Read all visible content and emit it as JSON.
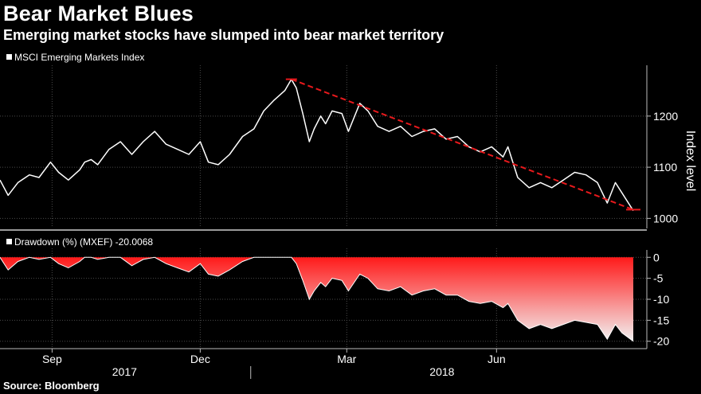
{
  "title": "Bear Market Blues",
  "subtitle": "Emerging market stocks have slumped into bear market territory",
  "source": "Source: Bloomberg",
  "colors": {
    "background": "#000000",
    "index_line": "#ffffff",
    "trend_line": "#e8191c",
    "drawdown_fill_top": "#ff1a1a",
    "drawdown_fill_bottom": "#f2f2f2",
    "grid": "#4a4a4a"
  },
  "chart_data": [
    {
      "type": "line",
      "legend": "MSCI Emerging Markets Index",
      "ylabel": "Index level",
      "ylim": [
        985,
        1290
      ],
      "yticks": [
        1000,
        1100,
        1200
      ],
      "x_range": [
        "2017-07-31",
        "2018-08-24"
      ],
      "series": [
        {
          "x": [
            "2017-07-31",
            "2017-08-05",
            "2017-08-11",
            "2017-08-18",
            "2017-08-24",
            "2017-08-31",
            "2017-09-05",
            "2017-09-11",
            "2017-09-18",
            "2017-09-21",
            "2017-09-25",
            "2017-09-29",
            "2017-10-06",
            "2017-10-13",
            "2017-10-20",
            "2017-10-27",
            "2017-11-03",
            "2017-11-10",
            "2017-11-17",
            "2017-11-24",
            "2017-12-01",
            "2017-12-06",
            "2017-12-12",
            "2017-12-19",
            "2017-12-27",
            "2018-01-03",
            "2018-01-09",
            "2018-01-15",
            "2018-01-22",
            "2018-01-26",
            "2018-01-29",
            "2018-02-02",
            "2018-02-06",
            "2018-02-09",
            "2018-02-13",
            "2018-02-16",
            "2018-02-20",
            "2018-02-26",
            "2018-03-02",
            "2018-03-09",
            "2018-03-14",
            "2018-03-20",
            "2018-03-27",
            "2018-04-03",
            "2018-04-10",
            "2018-04-17",
            "2018-04-24",
            "2018-05-01",
            "2018-05-08",
            "2018-05-15",
            "2018-05-22",
            "2018-05-29",
            "2018-06-05",
            "2018-06-08",
            "2018-06-14",
            "2018-06-21",
            "2018-06-28",
            "2018-07-05",
            "2018-07-12",
            "2018-07-19",
            "2018-07-26",
            "2018-08-02",
            "2018-08-08",
            "2018-08-13",
            "2018-08-17",
            "2018-08-24"
          ],
          "values": [
            1075,
            1045,
            1070,
            1085,
            1080,
            1110,
            1090,
            1075,
            1095,
            1110,
            1115,
            1105,
            1135,
            1150,
            1125,
            1150,
            1170,
            1145,
            1135,
            1125,
            1150,
            1110,
            1105,
            1125,
            1160,
            1175,
            1210,
            1230,
            1250,
            1272,
            1255,
            1205,
            1150,
            1175,
            1200,
            1185,
            1210,
            1205,
            1170,
            1225,
            1210,
            1180,
            1170,
            1180,
            1160,
            1170,
            1175,
            1155,
            1160,
            1140,
            1130,
            1140,
            1120,
            1140,
            1080,
            1060,
            1070,
            1060,
            1075,
            1090,
            1085,
            1070,
            1030,
            1070,
            1050,
            1015
          ]
        }
      ],
      "trend_line": {
        "from": {
          "x": "2018-01-26",
          "y": 1272
        },
        "to": {
          "x": "2018-08-24",
          "y": 1017
        }
      }
    },
    {
      "type": "area",
      "legend": "Drawdown (%) (MXEF) -20.0068",
      "ylim": [
        -21,
        1
      ],
      "yticks": [
        0,
        -5,
        -10,
        -15,
        -20
      ],
      "series": [
        {
          "x": [
            "2017-07-31",
            "2017-08-05",
            "2017-08-11",
            "2017-08-18",
            "2017-08-24",
            "2017-08-31",
            "2017-09-05",
            "2017-09-11",
            "2017-09-18",
            "2017-09-21",
            "2017-09-25",
            "2017-09-29",
            "2017-10-06",
            "2017-10-13",
            "2017-10-20",
            "2017-10-27",
            "2017-11-03",
            "2017-11-10",
            "2017-11-17",
            "2017-11-24",
            "2017-12-01",
            "2017-12-06",
            "2017-12-12",
            "2017-12-19",
            "2017-12-27",
            "2018-01-03",
            "2018-01-09",
            "2018-01-15",
            "2018-01-22",
            "2018-01-26",
            "2018-01-29",
            "2018-02-02",
            "2018-02-06",
            "2018-02-09",
            "2018-02-13",
            "2018-02-16",
            "2018-02-20",
            "2018-02-26",
            "2018-03-02",
            "2018-03-09",
            "2018-03-14",
            "2018-03-20",
            "2018-03-27",
            "2018-04-03",
            "2018-04-10",
            "2018-04-17",
            "2018-04-24",
            "2018-05-01",
            "2018-05-08",
            "2018-05-15",
            "2018-05-22",
            "2018-05-29",
            "2018-06-05",
            "2018-06-08",
            "2018-06-14",
            "2018-06-21",
            "2018-06-28",
            "2018-07-05",
            "2018-07-12",
            "2018-07-19",
            "2018-07-26",
            "2018-08-02",
            "2018-08-08",
            "2018-08-13",
            "2018-08-17",
            "2018-08-24"
          ],
          "values": [
            0,
            -3,
            -1,
            0,
            -0.5,
            0,
            -1.5,
            -2.5,
            -1,
            0,
            0,
            -0.5,
            0,
            0,
            -2,
            -0.5,
            0,
            -1.5,
            -2.5,
            -3.5,
            -1.5,
            -4,
            -4.5,
            -3,
            -1,
            0,
            0,
            0,
            0,
            0,
            -1.5,
            -5.5,
            -10,
            -8,
            -6,
            -7,
            -5,
            -5.5,
            -8,
            -4,
            -5,
            -7.5,
            -8,
            -7,
            -9,
            -8,
            -7.5,
            -9,
            -9,
            -10.5,
            -11,
            -10.5,
            -12,
            -11,
            -15,
            -17,
            -16,
            -17,
            -16,
            -15,
            -15.5,
            -16,
            -19.5,
            -16,
            -18,
            -20
          ]
        }
      ]
    }
  ],
  "x_axis": {
    "months": [
      {
        "label": "Sep",
        "date": "2017-09-01"
      },
      {
        "label": "Dec",
        "date": "2017-12-01"
      },
      {
        "label": "Mar",
        "date": "2018-03-01"
      },
      {
        "label": "Jun",
        "date": "2018-06-01"
      }
    ],
    "years": [
      {
        "label": "2017",
        "range": [
          "2017-07-31",
          "2017-12-31"
        ]
      },
      {
        "label": "2018",
        "range": [
          "2018-01-01",
          "2018-08-24"
        ]
      }
    ],
    "year_boundary": "2018-01-01"
  }
}
